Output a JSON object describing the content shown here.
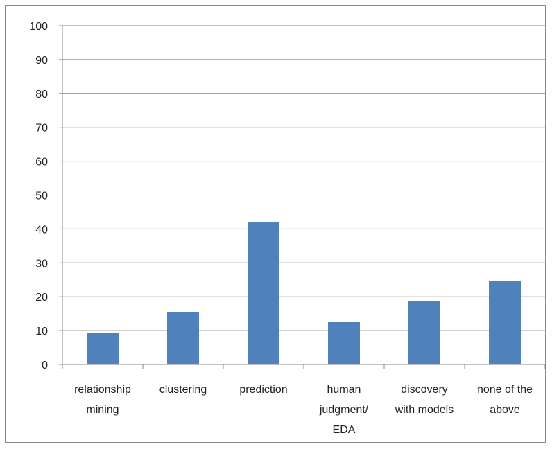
{
  "chart_data": {
    "type": "bar",
    "categories": [
      [
        "relationship",
        "mining"
      ],
      [
        "clustering"
      ],
      [
        "prediction"
      ],
      [
        "human",
        "judgment/",
        "EDA"
      ],
      [
        "discovery",
        "with models"
      ],
      [
        "none of the",
        "above"
      ]
    ],
    "values": [
      9.3,
      15.5,
      42,
      12.5,
      18.7,
      24.6
    ],
    "ylim": [
      0,
      100
    ],
    "yticks": [
      0,
      10,
      20,
      30,
      40,
      50,
      60,
      70,
      80,
      90,
      100
    ],
    "grid": true,
    "bar_color": "#4F81BD",
    "grid_color": "#868686",
    "title": "",
    "xlabel": "",
    "ylabel": ""
  }
}
